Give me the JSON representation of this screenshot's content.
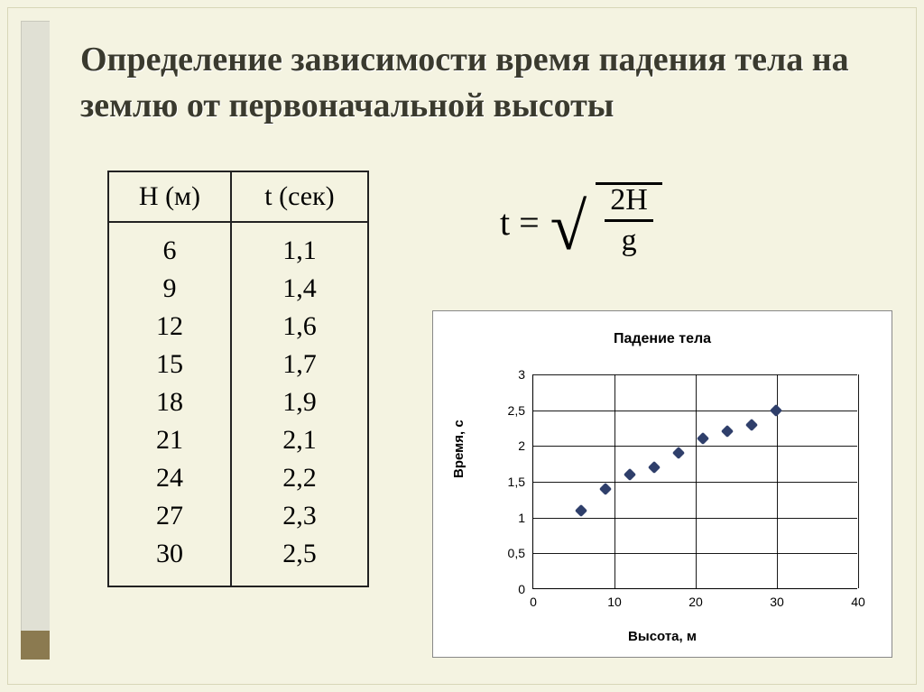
{
  "slide": {
    "title": "Определение зависимости время падения тела на землю  от первоначальной высоты",
    "background_color": "#f4f3e1",
    "accent_bar_color": "#e0e0d4",
    "accent_corner_color": "#8b7a50"
  },
  "table": {
    "headers": {
      "h": "H (м)",
      "t": "t (сек)"
    },
    "h_values": "6\n9\n12\n15\n18\n21\n24\n27\n30",
    "t_values": "1,1\n1,4\n1,6\n1,7\n1,9\n2,1\n2,2\n2,3\n2,5",
    "border_color": "#222222",
    "fontsize": 30
  },
  "formula": {
    "lhs": "t =",
    "numerator": "2H",
    "denominator": "g",
    "fontsize": 40
  },
  "chart": {
    "type": "scatter",
    "title": "Падение тела",
    "xlabel": "Высота, м",
    "ylabel": "Время, с",
    "title_fontsize": 16,
    "label_fontsize": 15,
    "tick_fontsize": 14,
    "xlim": [
      0,
      40
    ],
    "ylim": [
      0,
      3
    ],
    "xticks": [
      0,
      10,
      20,
      30,
      40
    ],
    "yticks": [
      0,
      0.5,
      1,
      1.5,
      2,
      2.5,
      3
    ],
    "ytick_labels": [
      "0",
      "0,5",
      "1",
      "1,5",
      "2",
      "2,5",
      "3"
    ],
    "grid_color": "#000000",
    "background_color": "#ffffff",
    "marker_color": "#2f3f6b",
    "marker_shape": "diamond",
    "marker_size": 10,
    "points": [
      {
        "x": 6,
        "y": 1.1
      },
      {
        "x": 9,
        "y": 1.4
      },
      {
        "x": 12,
        "y": 1.6
      },
      {
        "x": 15,
        "y": 1.7
      },
      {
        "x": 18,
        "y": 1.9
      },
      {
        "x": 21,
        "y": 2.1
      },
      {
        "x": 24,
        "y": 2.2
      },
      {
        "x": 27,
        "y": 2.3
      },
      {
        "x": 30,
        "y": 2.5
      }
    ]
  }
}
